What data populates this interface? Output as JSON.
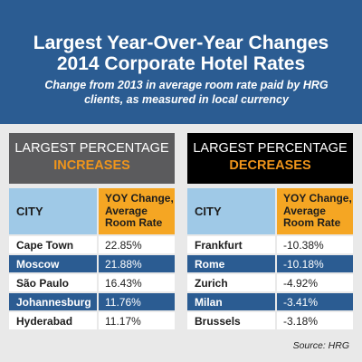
{
  "header": {
    "title_line1": "Largest Year-Over-Year Changes",
    "title_line2": "2014 Corporate Hotel Rates",
    "subtitle": "Change from 2013 in average room rate paid by HRG clients, as measured in local currency"
  },
  "panels": {
    "increases": {
      "line1": "LARGEST PERCENTAGE",
      "line2": "INCREASES"
    },
    "decreases": {
      "line1": "LARGEST PERCENTAGE",
      "line2": "DECREASES"
    }
  },
  "source": "Source: HRG",
  "colors": {
    "blue": "#2b5c92",
    "orange": "#f5a623",
    "light_blue": "#9fc9e7"
  },
  "chart_data": [
    {
      "type": "table",
      "title": "LARGEST PERCENTAGE INCREASES",
      "columns": [
        "CITY",
        "YOY Change, Average Room Rate"
      ],
      "rows": [
        [
          "Cape Town",
          "22.85%"
        ],
        [
          "Moscow",
          "21.88%"
        ],
        [
          "São Paulo",
          "16.43%"
        ],
        [
          "Johannesburg",
          "11.76%"
        ],
        [
          "Hyderabad",
          "11.17%"
        ]
      ]
    },
    {
      "type": "table",
      "title": "LARGEST PERCENTAGE DECREASES",
      "columns": [
        "CITY",
        "YOY Change, Average Room Rate"
      ],
      "rows": [
        [
          "Frankfurt",
          "-10.38%"
        ],
        [
          "Rome",
          "-10.18%"
        ],
        [
          "Zurich",
          "-4.92%"
        ],
        [
          "Milan",
          "-3.41%"
        ],
        [
          "Brussels",
          "-3.18%"
        ]
      ]
    }
  ]
}
